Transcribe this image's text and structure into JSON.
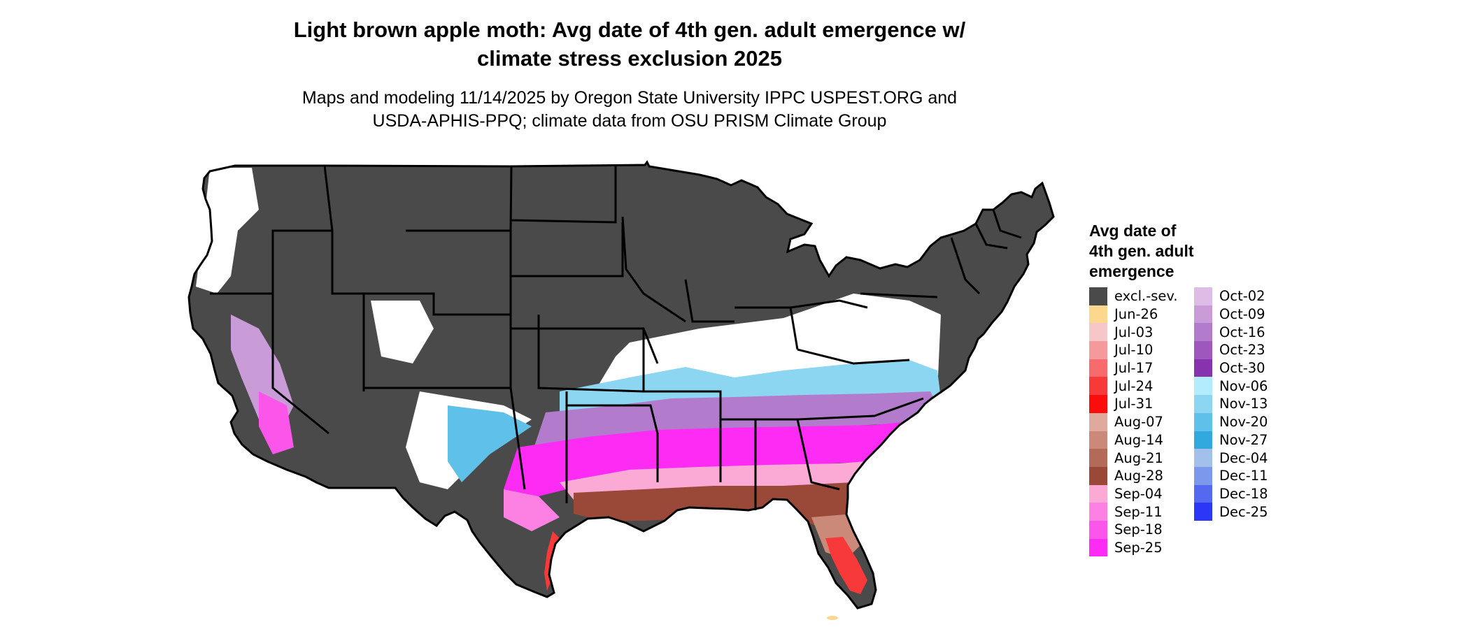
{
  "title_lines": [
    "Light brown apple moth: Avg date of 4th gen. adult emergence w/",
    "climate stress exclusion 2025"
  ],
  "subtitle_lines": [
    "Maps and modeling 11/14/2025 by Oregon State University IPPC USPEST.ORG and",
    "USDA-APHIS-PPQ; climate data from OSU PRISM Climate Group"
  ],
  "legend": {
    "title_lines": [
      "Avg date of",
      "4th gen. adult",
      "emergence"
    ],
    "columns": [
      [
        {
          "label": "excl.-sev.",
          "color": "#4a4a4a"
        },
        {
          "label": "Jun-26",
          "color": "#fdd78e"
        },
        {
          "label": "Jul-03",
          "color": "#f7c6c9"
        },
        {
          "label": "Jul-10",
          "color": "#f59a9c"
        },
        {
          "label": "Jul-17",
          "color": "#f76b6d"
        },
        {
          "label": "Jul-24",
          "color": "#f8393a"
        },
        {
          "label": "Jul-31",
          "color": "#fb0d0d"
        },
        {
          "label": "Aug-07",
          "color": "#dfaa9d"
        },
        {
          "label": "Aug-14",
          "color": "#cb8a79"
        },
        {
          "label": "Aug-21",
          "color": "#b36b59"
        },
        {
          "label": "Aug-28",
          "color": "#9a4837"
        },
        {
          "label": "Sep-04",
          "color": "#fbaad6"
        },
        {
          "label": "Sep-11",
          "color": "#fc81e2"
        },
        {
          "label": "Sep-18",
          "color": "#fc55ea"
        },
        {
          "label": "Sep-25",
          "color": "#fd2bf4"
        }
      ],
      [
        {
          "label": "Oct-02",
          "color": "#ddbde6"
        },
        {
          "label": "Oct-09",
          "color": "#c99cd8"
        },
        {
          "label": "Oct-16",
          "color": "#b27bcb"
        },
        {
          "label": "Oct-23",
          "color": "#9d57bd"
        },
        {
          "label": "Oct-30",
          "color": "#8833ae"
        },
        {
          "label": "Nov-06",
          "color": "#b3ecfd"
        },
        {
          "label": "Nov-13",
          "color": "#8cd6f2"
        },
        {
          "label": "Nov-20",
          "color": "#5fc1ea"
        },
        {
          "label": "Nov-27",
          "color": "#31a8de"
        },
        {
          "label": "Dec-04",
          "color": "#a2c0e9"
        },
        {
          "label": "Dec-11",
          "color": "#7c98ec"
        },
        {
          "label": "Dec-18",
          "color": "#5468f0"
        },
        {
          "label": "Dec-25",
          "color": "#2a37f7"
        }
      ]
    ]
  }
}
